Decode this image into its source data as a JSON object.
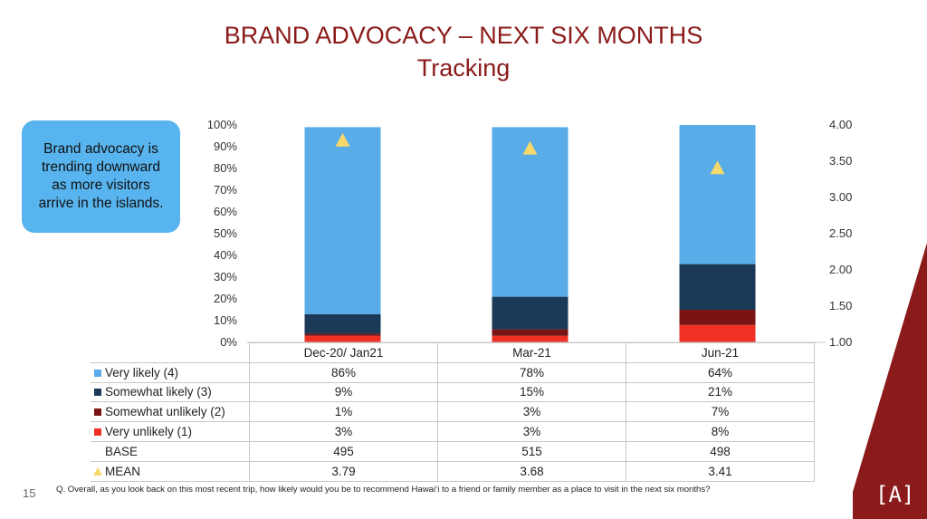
{
  "header": {
    "title": "BRAND ADVOCACY – NEXT SIX MONTHS",
    "subtitle": "Tracking"
  },
  "callout": {
    "text": "Brand advocacy is trending downward as more visitors arrive in the islands."
  },
  "colors": {
    "title": "#8B1A1A",
    "very_likely": "#58ACE8",
    "somewhat_likely": "#1B3A57",
    "somewhat_unlikely": "#7A1414",
    "very_unlikely": "#EE3124",
    "mean_marker": "#F6D86B",
    "callout_bg": "#58B4EE",
    "corner_bg": "#8B1A1A"
  },
  "chart_data": {
    "type": "bar",
    "stacked": true,
    "categories": [
      "Dec-20/ Jan21",
      "Mar-21",
      "Jun-21"
    ],
    "series": [
      {
        "name": "Very unlikely (1)",
        "values": [
          3,
          3,
          8
        ],
        "color": "#EE3124"
      },
      {
        "name": "Somewhat unlikely (2)",
        "values": [
          1,
          3,
          7
        ],
        "color": "#7A1414"
      },
      {
        "name": "Somewhat likely (3)",
        "values": [
          9,
          15,
          21
        ],
        "color": "#1B3A57"
      },
      {
        "name": "Very likely (4)",
        "values": [
          86,
          78,
          64
        ],
        "color": "#58ACE8"
      }
    ],
    "value_labels": [
      [
        "3%",
        "3%",
        "8%"
      ],
      [
        "1%",
        "3%",
        "7%"
      ],
      [
        "9%",
        "15%",
        "21%"
      ],
      [
        "86%",
        "78%",
        "64%"
      ]
    ],
    "ylim": [
      0,
      100
    ],
    "y_ticks": [
      "0%",
      "10%",
      "20%",
      "30%",
      "40%",
      "50%",
      "60%",
      "70%",
      "80%",
      "90%",
      "100%"
    ],
    "mean": {
      "name": "MEAN",
      "values": [
        3.79,
        3.68,
        3.41
      ],
      "labels": [
        "3.79",
        "3.68",
        "3.41"
      ],
      "marker": "triangle",
      "color": "#F6D86B"
    },
    "y2lim": [
      1.0,
      4.0
    ],
    "y2_ticks": [
      "1.00",
      "1.50",
      "2.00",
      "2.50",
      "3.00",
      "3.50",
      "4.00"
    ],
    "base": {
      "name": "BASE",
      "values": [
        "495",
        "515",
        "498"
      ]
    },
    "legend": "data table below chart",
    "grid": false
  },
  "footer": {
    "page_number": "15",
    "question": "Q.   Overall, as you look back on this most recent trip, how likely would you be to recommend Hawai‘i to a friend or family member as a place to visit in the next six months?",
    "logo": "[A]"
  }
}
